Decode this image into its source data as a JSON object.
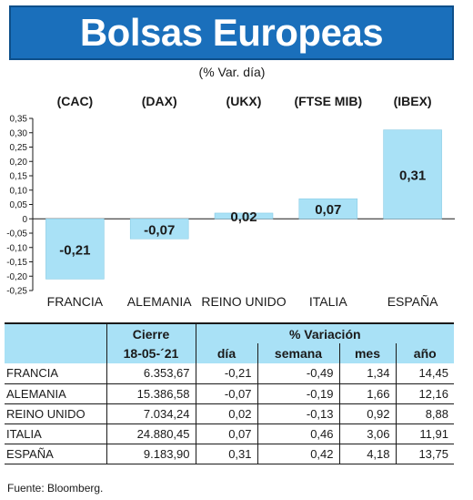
{
  "header": {
    "title": "Bolsas Europeas",
    "subtitle": "(% Var. día)"
  },
  "chart_data": {
    "type": "bar",
    "index_labels": [
      "(CAC)",
      "(DAX)",
      "(UKX)",
      "(FTSE MIB)",
      "(IBEX)"
    ],
    "categories": [
      "FRANCIA",
      "ALEMANIA",
      "REINO UNIDO",
      "ITALIA",
      "ESPAÑA"
    ],
    "values": [
      -0.21,
      -0.07,
      0.02,
      0.07,
      0.31
    ],
    "value_labels": [
      "-0,21",
      "-0,07",
      "0,02",
      "0,07",
      "0,31"
    ],
    "ylim": [
      -0.25,
      0.35
    ],
    "yticks": [
      0.35,
      0.3,
      0.25,
      0.2,
      0.15,
      0.1,
      0.05,
      0,
      -0.05,
      -0.1,
      -0.15,
      -0.2,
      -0.25
    ],
    "ytick_labels": [
      "0,35",
      "0,30",
      "0,25",
      "0,20",
      "0,15",
      "0,10",
      "0,05",
      "0",
      "-0,05",
      "-0,10",
      "-0,15",
      "-0,20",
      "-0,25"
    ],
    "bar_color": "#a9e1f6",
    "grid": false
  },
  "table": {
    "group_cierre": "Cierre",
    "group_var": "% Variación",
    "date": "18-05-´21",
    "cols": [
      "día",
      "semana",
      "mes",
      "año"
    ],
    "rows": [
      {
        "name": "FRANCIA",
        "cierre": "6.353,67",
        "dia": "-0,21",
        "semana": "-0,49",
        "mes": "1,34",
        "ano": "14,45"
      },
      {
        "name": "ALEMANIA",
        "cierre": "15.386,58",
        "dia": "-0,07",
        "semana": "-0,19",
        "mes": "1,66",
        "ano": "12,16"
      },
      {
        "name": "REINO UNIDO",
        "cierre": "7.034,24",
        "dia": "0,02",
        "semana": "-0,13",
        "mes": "0,92",
        "ano": "8,88"
      },
      {
        "name": "ITALIA",
        "cierre": "24.880,45",
        "dia": "0,07",
        "semana": "0,46",
        "mes": "3,06",
        "ano": "11,91"
      },
      {
        "name": "ESPAÑA",
        "cierre": "9.183,90",
        "dia": "0,31",
        "semana": "0,42",
        "mes": "4,18",
        "ano": "13,75"
      }
    ]
  },
  "source": "Fuente: Bloomberg.",
  "colors": {
    "title_bg": "#1a6fbb",
    "table_header_bg": "#a9e1f6"
  }
}
